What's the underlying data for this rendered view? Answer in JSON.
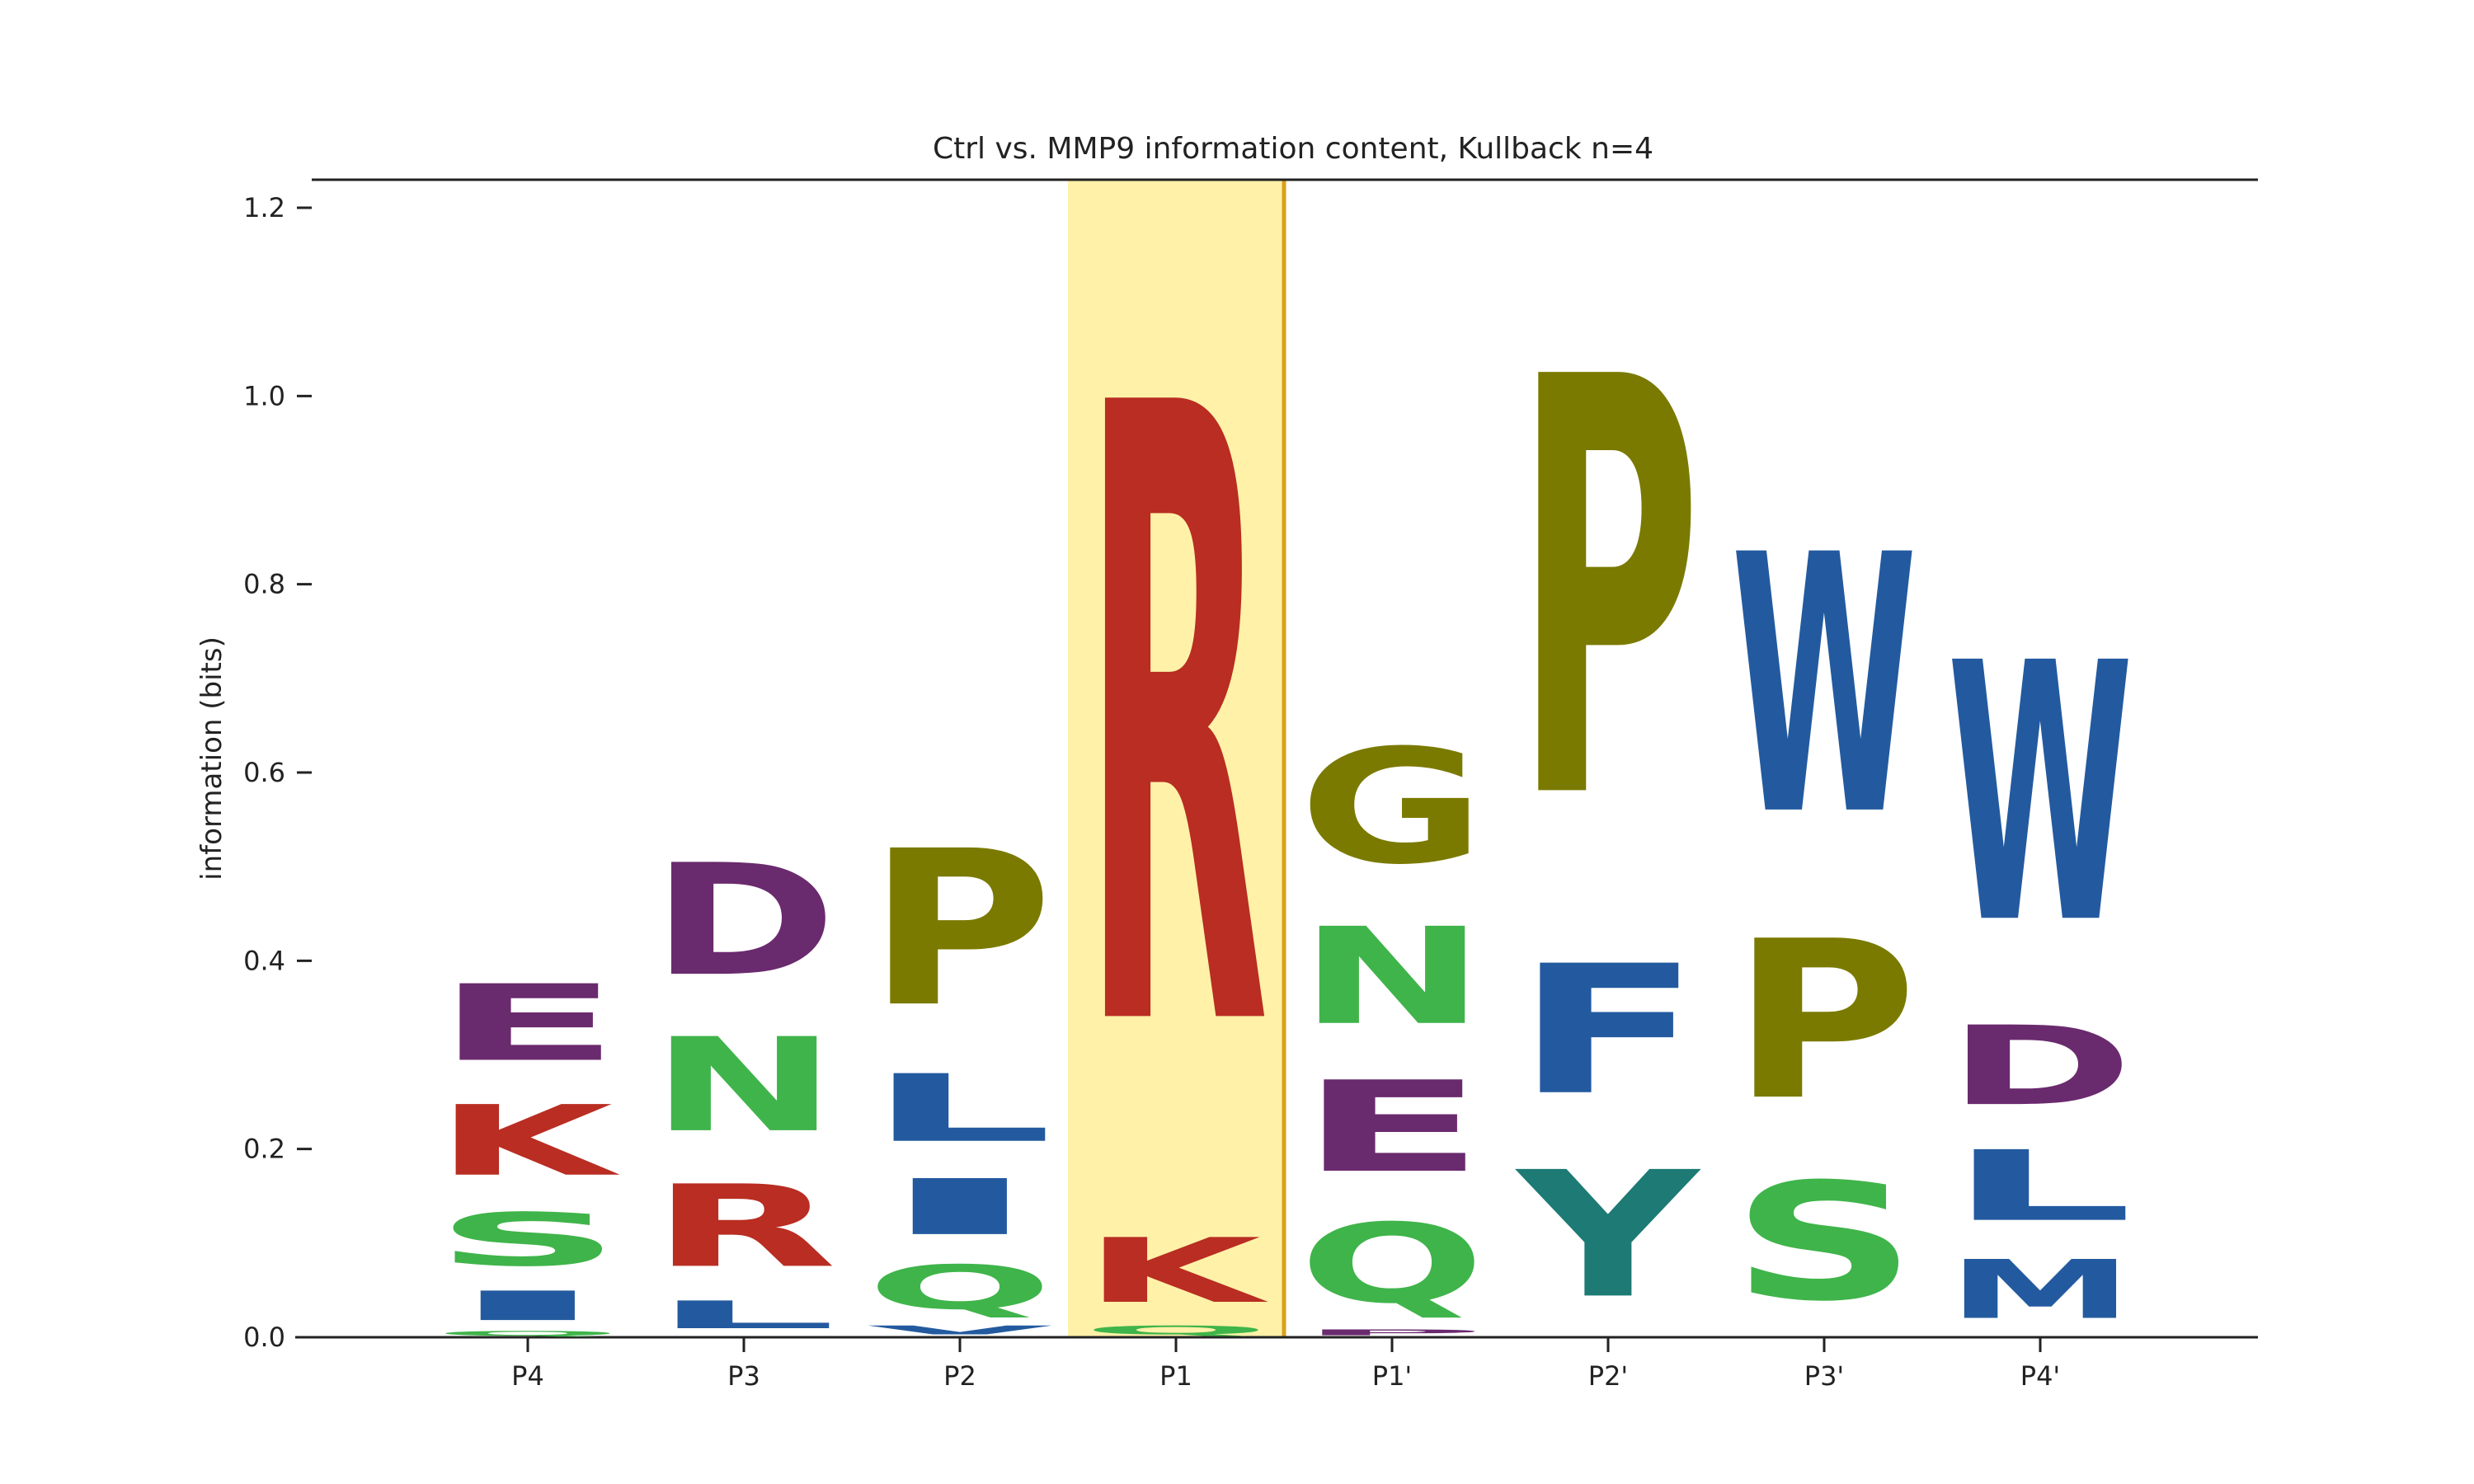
{
  "chart_data": {
    "type": "sequence-logo",
    "title": "Ctrl vs. MMP9 information content, Kullback n=4",
    "xlabel": "",
    "ylabel": "information (bits)",
    "ylim": [
      0,
      1.22
    ],
    "y_ticks": [
      "0.0",
      "0.2",
      "0.4",
      "0.6",
      "0.8",
      "1.0",
      "1.2"
    ],
    "y_tick_values": [
      0,
      0.2,
      0.4,
      0.6,
      0.8,
      1.0,
      1.2
    ],
    "positions": [
      "P4",
      "P3",
      "P2",
      "P1",
      "P1'",
      "P2'",
      "P3'",
      "P4'"
    ],
    "highlight_position": "P1",
    "highlight_color": "#fff1a8",
    "highlight_edge_color": "#d9a21b",
    "colors": {
      "acidic_purple": "#6a2a6e",
      "basic_red": "#b92d22",
      "polar_green": "#3fb44a",
      "hydrophobic_blue": "#235a9f",
      "special_olive": "#7a7a00",
      "aromatic_teal": "#1d7a74"
    },
    "stacks": [
      {
        "position": "P4",
        "letters": [
          {
            "letter": "Q",
            "value": 0.008,
            "color": "#3fb44a"
          },
          {
            "letter": "I",
            "value": 0.05,
            "color": "#235a9f"
          },
          {
            "letter": "S",
            "value": 0.09,
            "color": "#3fb44a"
          },
          {
            "letter": "K",
            "value": 0.12,
            "color": "#b92d22"
          },
          {
            "letter": "E",
            "value": 0.13,
            "color": "#6a2a6e"
          }
        ]
      },
      {
        "position": "P3",
        "letters": [
          {
            "letter": "L",
            "value": 0.047,
            "color": "#235a9f"
          },
          {
            "letter": "R",
            "value": 0.14,
            "color": "#b92d22"
          },
          {
            "letter": "N",
            "value": 0.16,
            "color": "#3fb44a"
          },
          {
            "letter": "D",
            "value": 0.19,
            "color": "#6a2a6e"
          }
        ]
      },
      {
        "position": "P2",
        "letters": [
          {
            "letter": "V",
            "value": 0.015,
            "color": "#235a9f"
          },
          {
            "letter": "Q",
            "value": 0.075,
            "color": "#3fb44a"
          },
          {
            "letter": "I",
            "value": 0.095,
            "color": "#235a9f"
          },
          {
            "letter": "L",
            "value": 0.115,
            "color": "#235a9f"
          },
          {
            "letter": "P",
            "value": 0.265,
            "color": "#7a7a00"
          }
        ]
      },
      {
        "position": "P1",
        "letters": [
          {
            "letter": "Q",
            "value": 0.015,
            "color": "#3fb44a"
          },
          {
            "letter": "K",
            "value": 0.11,
            "color": "#b92d22"
          },
          {
            "letter": "R",
            "value": 1.05,
            "color": "#b92d22"
          }
        ]
      },
      {
        "position": "P1'",
        "letters": [
          {
            "letter": "P",
            "value": 0.01,
            "color": "#6a2a6e"
          },
          {
            "letter": "Q",
            "value": 0.135,
            "color": "#3fb44a"
          },
          {
            "letter": "E",
            "value": 0.155,
            "color": "#6a2a6e"
          },
          {
            "letter": "N",
            "value": 0.165,
            "color": "#3fb44a"
          },
          {
            "letter": "G",
            "value": 0.195,
            "color": "#7a7a00"
          }
        ]
      },
      {
        "position": "P2'",
        "letters": [
          {
            "letter": "Y",
            "value": 0.215,
            "color": "#1d7a74"
          },
          {
            "letter": "F",
            "value": 0.22,
            "color": "#235a9f"
          },
          {
            "letter": "P",
            "value": 0.71,
            "color": "#7a7a00"
          }
        ]
      },
      {
        "position": "P3'",
        "letters": [
          {
            "letter": "S",
            "value": 0.2,
            "color": "#3fb44a"
          },
          {
            "letter": "P",
            "value": 0.27,
            "color": "#7a7a00"
          },
          {
            "letter": "W",
            "value": 0.44,
            "color": "#235a9f"
          }
        ]
      },
      {
        "position": "P4'",
        "letters": [
          {
            "letter": "M",
            "value": 0.1,
            "color": "#235a9f"
          },
          {
            "letter": "L",
            "value": 0.12,
            "color": "#235a9f"
          },
          {
            "letter": "D",
            "value": 0.135,
            "color": "#6a2a6e"
          },
          {
            "letter": "W",
            "value": 0.44,
            "color": "#235a9f"
          }
        ]
      }
    ]
  }
}
